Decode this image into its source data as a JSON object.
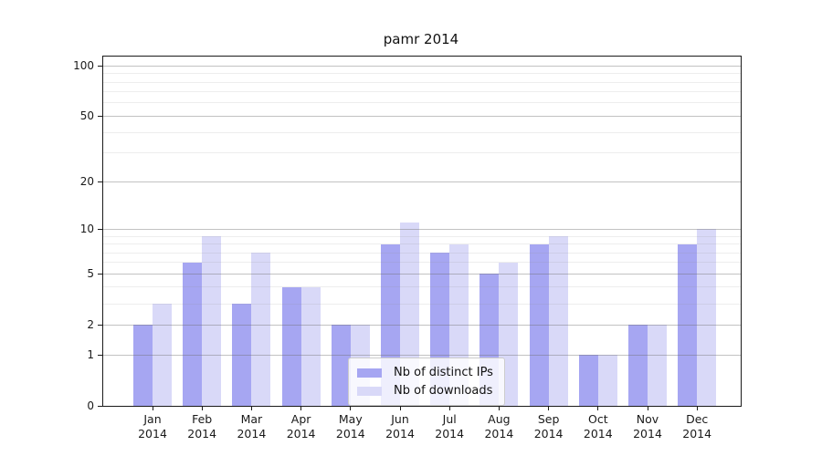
{
  "chart_data": {
    "type": "bar",
    "title": "pamr 2014",
    "categories": [
      "Jan 2014",
      "Feb 2014",
      "Mar 2014",
      "Apr 2014",
      "May 2014",
      "Jun 2014",
      "Jul 2014",
      "Aug 2014",
      "Sep 2014",
      "Oct 2014",
      "Nov 2014",
      "Dec 2014"
    ],
    "series": [
      {
        "name": "Nb of distinct IPs",
        "color": "#a6a6f2",
        "values": [
          2,
          6,
          3,
          4,
          2,
          8,
          7,
          5,
          8,
          1,
          2,
          8
        ]
      },
      {
        "name": "Nb of downloads",
        "color": "#d9d9f8",
        "values": [
          3,
          9,
          7,
          4,
          2,
          11,
          8,
          6,
          9,
          1,
          2,
          10
        ]
      }
    ],
    "y_axis": {
      "scale": "log1p",
      "ticks": [
        0,
        1,
        2,
        5,
        10,
        20,
        50,
        100
      ],
      "minor_gridlines": [
        3,
        4,
        6,
        7,
        8,
        9,
        30,
        40,
        60,
        70,
        80,
        90
      ],
      "ylim": [
        0,
        110
      ]
    },
    "xlabel": "",
    "ylabel": "",
    "grid": true,
    "legend_position": "lower-center-inside",
    "colors": {
      "axis": "#1a1a1a",
      "background": "#ffffff"
    }
  }
}
